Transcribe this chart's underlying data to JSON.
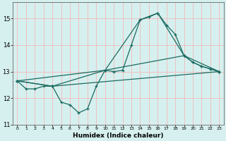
{
  "xlabel": "Humidex (Indice chaleur)",
  "bg_color": "#d6f0ef",
  "grid_color_h": "#f0c0c0",
  "grid_color_v": "#f0c0c0",
  "line_color": "#1a6b60",
  "xlim": [
    -0.5,
    23.5
  ],
  "ylim": [
    11,
    15.6
  ],
  "yticks": [
    11,
    12,
    13,
    14,
    15
  ],
  "xtick_positions": [
    0,
    1,
    2,
    3,
    4,
    5,
    6,
    7,
    8,
    9,
    10,
    11,
    12,
    13,
    14,
    15,
    16,
    17,
    18,
    19,
    20,
    21,
    22,
    23
  ],
  "xtick_labels": [
    "0",
    "1",
    "2",
    "3",
    "4",
    "5",
    "6",
    "7",
    "8",
    "9",
    "10",
    "11",
    "12",
    "13",
    "14",
    "15",
    "16",
    "17",
    "18",
    "19",
    "20",
    "21",
    "22",
    "23"
  ],
  "lines": [
    {
      "x": [
        0,
        1,
        2,
        3,
        4,
        5,
        6,
        7,
        8,
        9,
        10,
        11,
        12,
        13,
        14,
        15,
        16,
        17,
        18,
        19,
        20,
        21,
        22,
        23
      ],
      "y": [
        12.65,
        12.35,
        12.35,
        12.45,
        12.45,
        11.85,
        11.75,
        11.45,
        11.6,
        12.45,
        13.05,
        13.0,
        13.05,
        14.0,
        14.95,
        15.05,
        15.2,
        14.75,
        14.4,
        13.6,
        13.35,
        13.2,
        13.1,
        13.0
      ]
    },
    {
      "x": [
        0,
        4,
        10,
        14,
        16,
        19,
        20,
        21,
        22,
        23
      ],
      "y": [
        12.65,
        12.45,
        13.05,
        14.95,
        15.2,
        13.6,
        13.35,
        13.2,
        13.1,
        13.0
      ]
    },
    {
      "x": [
        0,
        4,
        23
      ],
      "y": [
        12.65,
        12.45,
        13.0
      ]
    },
    {
      "x": [
        0,
        10,
        19,
        23
      ],
      "y": [
        12.65,
        13.05,
        13.6,
        13.0
      ]
    }
  ]
}
